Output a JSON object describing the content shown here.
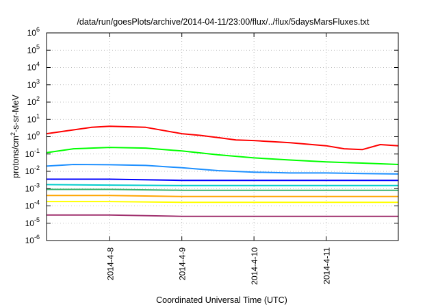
{
  "chart_data": {
    "type": "line",
    "title": "/data/run/goesPlots/archive/2014-04-11/23:00/flux/../flux/5daysMarsFluxes.txt",
    "xlabel": "Coordinated Universal Time (UTC)",
    "ylabel": {
      "prefix": "protons/cm",
      "sup": "2",
      "suffix": "-s-sr-MeV"
    },
    "yscale": "log",
    "ylim": [
      1e-06,
      1000000.0
    ],
    "y_ticks": [
      {
        "base": "10",
        "exp": "-6",
        "value": 1e-06
      },
      {
        "base": "10",
        "exp": "-5",
        "value": 1e-05
      },
      {
        "base": "10",
        "exp": "-4",
        "value": 0.0001
      },
      {
        "base": "10",
        "exp": "-3",
        "value": 0.001
      },
      {
        "base": "10",
        "exp": "-2",
        "value": 0.01
      },
      {
        "base": "10",
        "exp": "-1",
        "value": 0.1
      },
      {
        "base": "10",
        "exp": "0",
        "value": 1
      },
      {
        "base": "10",
        "exp": "1",
        "value": 10
      },
      {
        "base": "10",
        "exp": "2",
        "value": 100
      },
      {
        "base": "10",
        "exp": "3",
        "value": 1000
      },
      {
        "base": "10",
        "exp": "4",
        "value": 10000
      },
      {
        "base": "10",
        "exp": "5",
        "value": 100000
      },
      {
        "base": "10",
        "exp": "6",
        "value": 1000000
      }
    ],
    "xlim": [
      "2014-04-07 03:00",
      "2014-04-12 00:00"
    ],
    "x_ticks": [
      {
        "label": "2014-4-8",
        "value": "2014-04-08 00:00"
      },
      {
        "label": "2014-4-9",
        "value": "2014-04-09 00:00"
      },
      {
        "label": "2014-4-10",
        "value": "2014-04-10 00:00"
      },
      {
        "label": "2014-4-11",
        "value": "2014-04-11 00:00"
      }
    ],
    "grid": true,
    "series": [
      {
        "color": "#ff0000",
        "x": [
          "2014-04-07 03:00",
          "2014-04-07 12:00",
          "2014-04-07 18:00",
          "2014-04-08 00:00",
          "2014-04-08 12:00",
          "2014-04-09 00:00",
          "2014-04-09 06:00",
          "2014-04-09 12:00",
          "2014-04-09 18:00",
          "2014-04-10 00:00",
          "2014-04-10 12:00",
          "2014-04-11 00:00",
          "2014-04-11 06:00",
          "2014-04-11 12:00",
          "2014-04-11 18:00",
          "2014-04-12 00:00"
        ],
        "y": [
          1.5,
          2.5,
          3.5,
          4,
          3.5,
          1.5,
          1.2,
          0.9,
          0.65,
          0.6,
          0.45,
          0.3,
          0.2,
          0.18,
          0.35,
          0.3
        ]
      },
      {
        "color": "#00ff00",
        "x": [
          "2014-04-07 03:00",
          "2014-04-07 12:00",
          "2014-04-08 00:00",
          "2014-04-08 12:00",
          "2014-04-09 00:00",
          "2014-04-09 12:00",
          "2014-04-10 00:00",
          "2014-04-10 12:00",
          "2014-04-11 00:00",
          "2014-04-11 12:00",
          "2014-04-12 00:00"
        ],
        "y": [
          0.12,
          0.2,
          0.24,
          0.22,
          0.15,
          0.09,
          0.06,
          0.045,
          0.035,
          0.03,
          0.025
        ]
      },
      {
        "color": "#1e90ff",
        "x": [
          "2014-04-07 03:00",
          "2014-04-07 12:00",
          "2014-04-08 00:00",
          "2014-04-08 12:00",
          "2014-04-09 00:00",
          "2014-04-09 12:00",
          "2014-04-10 00:00",
          "2014-04-10 12:00",
          "2014-04-11 00:00",
          "2014-04-11 12:00",
          "2014-04-12 00:00"
        ],
        "y": [
          0.02,
          0.025,
          0.024,
          0.022,
          0.016,
          0.011,
          0.009,
          0.008,
          0.008,
          0.0075,
          0.007
        ]
      },
      {
        "color": "#0000ff",
        "x": [
          "2014-04-07 03:00",
          "2014-04-08 00:00",
          "2014-04-09 00:00",
          "2014-04-10 00:00",
          "2014-04-11 00:00",
          "2014-04-12 00:00"
        ],
        "y": [
          0.0035,
          0.0035,
          0.003,
          0.003,
          0.003,
          0.003
        ]
      },
      {
        "color": "#00cccc",
        "x": [
          "2014-04-07 03:00",
          "2014-04-08 00:00",
          "2014-04-09 00:00",
          "2014-04-10 00:00",
          "2014-04-11 00:00",
          "2014-04-12 00:00"
        ],
        "y": [
          0.0017,
          0.0016,
          0.0015,
          0.0015,
          0.0015,
          0.0015
        ]
      },
      {
        "color": "#3cb371",
        "x": [
          "2014-04-07 03:00",
          "2014-04-08 00:00",
          "2014-04-09 00:00",
          "2014-04-10 00:00",
          "2014-04-11 00:00",
          "2014-04-12 00:00"
        ],
        "y": [
          0.0009,
          0.0009,
          0.0008,
          0.0008,
          0.0008,
          0.0008
        ]
      },
      {
        "color": "#ffa500",
        "x": [
          "2014-04-07 03:00",
          "2014-04-08 00:00",
          "2014-04-09 00:00",
          "2014-04-10 00:00",
          "2014-04-11 00:00",
          "2014-04-12 00:00"
        ],
        "y": [
          0.0004,
          0.0004,
          0.00035,
          0.00035,
          0.00035,
          0.00035
        ]
      },
      {
        "color": "#ffff00",
        "x": [
          "2014-04-07 03:00",
          "2014-04-08 00:00",
          "2014-04-09 00:00",
          "2014-04-10 00:00",
          "2014-04-11 00:00",
          "2014-04-12 00:00"
        ],
        "y": [
          0.00018,
          0.00018,
          0.00016,
          0.00016,
          0.00016,
          0.00016
        ]
      },
      {
        "color": "#a0306e",
        "x": [
          "2014-04-07 03:00",
          "2014-04-08 00:00",
          "2014-04-09 00:00",
          "2014-04-10 00:00",
          "2014-04-11 00:00",
          "2014-04-12 00:00"
        ],
        "y": [
          3e-05,
          3e-05,
          2.5e-05,
          2.5e-05,
          2.5e-05,
          2.5e-05
        ]
      }
    ]
  }
}
